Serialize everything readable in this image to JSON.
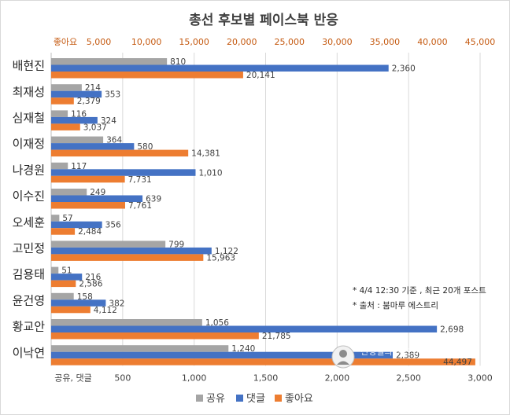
{
  "chart_data": {
    "type": "bar",
    "orientation": "horizontal",
    "title": "총선 후보별 페이스북 반응",
    "categories": [
      "배현진",
      "최재성",
      "심재철",
      "이재정",
      "나경원",
      "이수진",
      "오세훈",
      "고민정",
      "김용태",
      "윤건영",
      "황교안",
      "이낙연"
    ],
    "series": [
      {
        "name": "공유",
        "axis": "bottom",
        "color": "#a5a5a5",
        "values": [
          810,
          214,
          116,
          364,
          117,
          249,
          57,
          799,
          51,
          158,
          1056,
          1240
        ],
        "labels": [
          "810",
          "214",
          "116",
          "364",
          "117",
          "249",
          "57",
          "799",
          "51",
          "158",
          "1,056",
          "1,240"
        ]
      },
      {
        "name": "댓글",
        "axis": "bottom",
        "color": "#4472c4",
        "values": [
          2360,
          353,
          324,
          580,
          1010,
          639,
          356,
          1122,
          216,
          382,
          2698,
          2389
        ],
        "labels": [
          "2,360",
          "353",
          "324",
          "580",
          "1,010",
          "639",
          "356",
          "1,122",
          "216",
          "382",
          "2,698",
          "2,389"
        ]
      },
      {
        "name": "좋아요",
        "axis": "top",
        "color": "#ed7d31",
        "values": [
          20141,
          2379,
          3037,
          14381,
          7731,
          7761,
          2484,
          15963,
          2586,
          4112,
          21785,
          44497
        ],
        "labels": [
          "20,141",
          "2,379",
          "3,037",
          "14,381",
          "7,731",
          "7,761",
          "2,484",
          "15,963",
          "2,586",
          "4,112",
          "21,785",
          "44,497"
        ]
      }
    ],
    "bottom_axis": {
      "title": "공유, 댓글",
      "range": [
        0,
        3000
      ],
      "ticks": [
        500,
        1000,
        1500,
        2000,
        2500,
        3000
      ],
      "tick_labels": [
        "500",
        "1,000",
        "1,500",
        "2,000",
        "2,500",
        "3,000"
      ]
    },
    "top_axis": {
      "title": "좋아요",
      "range": [
        0,
        45000
      ],
      "ticks": [
        5000,
        10000,
        15000,
        20000,
        25000,
        30000,
        35000,
        40000,
        45000
      ],
      "tick_labels": [
        "5,000",
        "10,000",
        "15,000",
        "20,000",
        "25,000",
        "30,000",
        "35,000",
        "40,000",
        "45,000"
      ]
    },
    "grid": true,
    "legend_position": "bottom"
  },
  "notes": [
    "* 4/4 12:30 기준 , 최근 20개 포스트",
    "* 출처 : 붐마루 에스트리"
  ],
  "watermark": "신명철의 하츠의 꿈",
  "colors": {
    "share": "#a5a5a5",
    "comment": "#4472c4",
    "like": "#ed7d31",
    "grid": "#d9d9d9"
  }
}
